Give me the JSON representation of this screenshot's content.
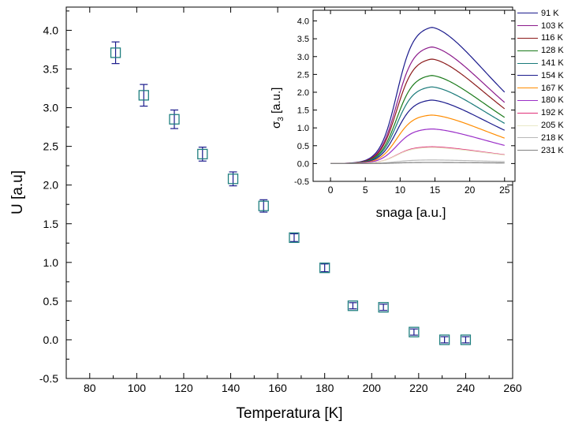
{
  "chart_data": [
    {
      "type": "scatter",
      "xlabel": "Temperatura [K]",
      "ylabel": "U [a.u]",
      "xlim": [
        70,
        260
      ],
      "ylim": [
        -0.5,
        4.3
      ],
      "xticks": [
        80,
        100,
        120,
        140,
        160,
        180,
        200,
        220,
        240,
        260
      ],
      "yticks": [
        -0.5,
        0.0,
        0.5,
        1.0,
        1.5,
        2.0,
        2.5,
        3.0,
        3.5,
        4.0
      ],
      "grid": false,
      "marker_color": "#1f7f7f",
      "errorbar_color": "#1a1a8c",
      "points": [
        {
          "x": 91,
          "y": 3.71,
          "err": 0.14
        },
        {
          "x": 103,
          "y": 3.16,
          "err": 0.14
        },
        {
          "x": 116,
          "y": 2.85,
          "err": 0.12
        },
        {
          "x": 128,
          "y": 2.4,
          "err": 0.09
        },
        {
          "x": 141,
          "y": 2.08,
          "err": 0.09
        },
        {
          "x": 154,
          "y": 1.73,
          "err": 0.08
        },
        {
          "x": 167,
          "y": 1.32,
          "err": 0.05
        },
        {
          "x": 180,
          "y": 0.93,
          "err": 0.05
        },
        {
          "x": 192,
          "y": 0.44,
          "err": 0.04
        },
        {
          "x": 205,
          "y": 0.42,
          "err": 0.04
        },
        {
          "x": 218,
          "y": 0.1,
          "err": 0.04
        },
        {
          "x": 231,
          "y": 0.0,
          "err": 0.04
        },
        {
          "x": 240,
          "y": 0.0,
          "err": 0.04
        }
      ]
    },
    {
      "type": "line",
      "xlabel": "snaga [a.u.]",
      "ylabel_main": "σ",
      "ylabel_sub": "3",
      "ylabel_unit": " [a.u.]",
      "xlim": [
        -2.5,
        26.5
      ],
      "ylim": [
        -0.5,
        4.3
      ],
      "xticks": [
        0,
        5,
        10,
        15,
        20,
        25
      ],
      "yticks": [
        -0.5,
        0.0,
        0.5,
        1.0,
        1.5,
        2.0,
        2.5,
        3.0,
        3.5,
        4.0
      ],
      "grid": false,
      "legend_position": "right",
      "curve": {
        "x_mid": 9.5,
        "width": 1.2,
        "x_peak": 14.5,
        "decay": 0.015,
        "x_end": 25
      },
      "series": [
        {
          "name": "91 K",
          "color": "#1a1a8c",
          "peak": 3.82
        },
        {
          "name": "103 K",
          "color": "#8b1a8b",
          "peak": 3.27
        },
        {
          "name": "116 K",
          "color": "#8b1a1a",
          "peak": 2.93
        },
        {
          "name": "128 K",
          "color": "#1a7a1a",
          "peak": 2.47
        },
        {
          "name": "141 K",
          "color": "#1a7a7a",
          "peak": 2.15
        },
        {
          "name": "154 K",
          "color": "#1a1a8c",
          "peak": 1.78
        },
        {
          "name": "167 K",
          "color": "#ff8c00",
          "peak": 1.36
        },
        {
          "name": "180 K",
          "color": "#9b30c8",
          "peak": 0.97
        },
        {
          "name": "192 K",
          "color": "#e0307a",
          "peak": 0.47
        },
        {
          "name": "205 K",
          "color": "#e8e8c8",
          "peak": 0.45
        },
        {
          "name": "218 K",
          "color": "#b8b8b8",
          "peak": 0.1
        },
        {
          "name": "231 K",
          "color": "#808080",
          "peak": 0.03
        }
      ]
    }
  ]
}
